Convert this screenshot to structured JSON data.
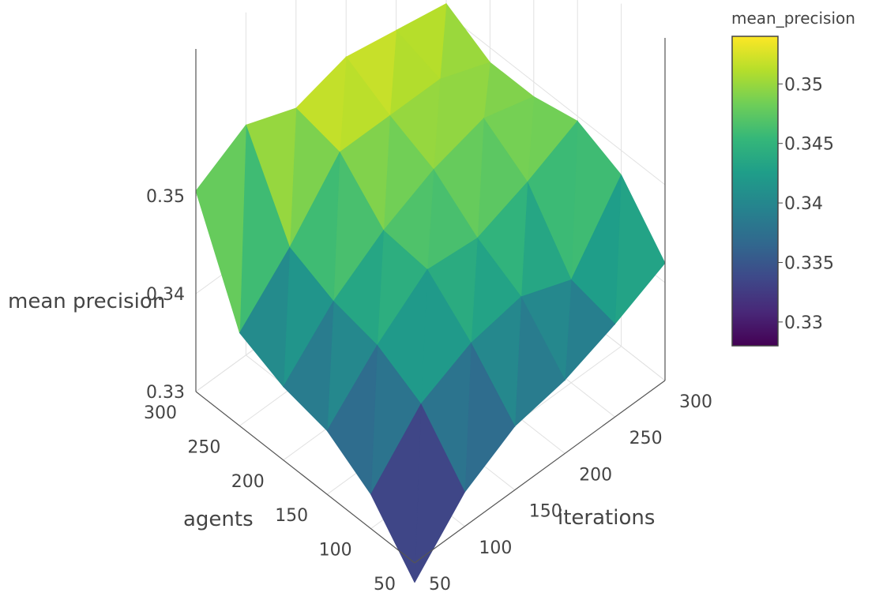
{
  "chart_data": {
    "type": "surface3d",
    "title": "",
    "x": {
      "label": "iterations",
      "values": [
        50,
        100,
        150,
        200,
        250,
        300
      ],
      "ticks": [
        "50",
        "100",
        "150",
        "200",
        "250",
        "300"
      ]
    },
    "y": {
      "label": "agents",
      "values": [
        50,
        100,
        150,
        200,
        250,
        300
      ],
      "ticks": [
        "50",
        "100",
        "150",
        "200",
        "250",
        "300"
      ]
    },
    "z": {
      "label": "mean precision",
      "ticks": [
        "0.33",
        "0.34",
        "0.35"
      ],
      "range": [
        0.33,
        0.36
      ]
    },
    "colorbar": {
      "title": "mean_precision",
      "colorscale": "viridis",
      "range": [
        0.328,
        0.354
      ],
      "ticks": [
        "0.33",
        "0.335",
        "0.34",
        "0.345",
        "0.35"
      ]
    },
    "z_grid_rows_are_agents_cols_are_iterations": [
      [
        0.328,
        0.3335,
        0.3365,
        0.3375,
        0.3395,
        0.342
      ],
      [
        0.3335,
        0.339,
        0.3415,
        0.3425,
        0.3405,
        0.3475
      ],
      [
        0.3365,
        0.3415,
        0.3455,
        0.345,
        0.347,
        0.3495
      ],
      [
        0.3375,
        0.3425,
        0.346,
        0.3485,
        0.35,
        0.3485
      ],
      [
        0.3395,
        0.3445,
        0.3505,
        0.3505,
        0.3505,
        0.3485
      ],
      [
        0.3505,
        0.3535,
        0.3515,
        0.353,
        0.352,
        0.351
      ]
    ]
  }
}
